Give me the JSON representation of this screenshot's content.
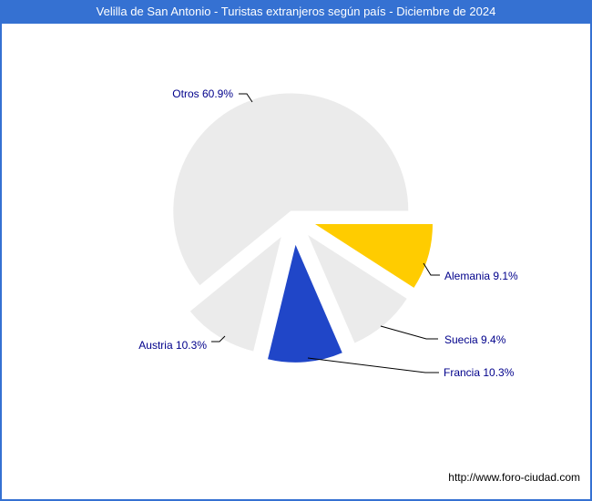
{
  "window": {
    "title": "Velilla de San Antonio - Turistas extranjeros según país - Diciembre de 2024"
  },
  "footer": {
    "url": "http://www.foro-ciudad.com"
  },
  "colors": {
    "titlebar_bg": "#3571D2",
    "titlebar_text": "#FFFFFF",
    "frame_border": "#3571D2",
    "label_text": "#00008B",
    "leader_line": "#000000",
    "background": "#FFFFFF"
  },
  "chart_data": {
    "type": "pie",
    "title": "Velilla de San Antonio - Turistas extranjeros según país - Diciembre de 2024",
    "unit": "%",
    "start_angle_deg": 0,
    "direction": "clockwise",
    "legend_position": "none",
    "exploded": true,
    "slices": [
      {
        "label": "Alemania",
        "value": 9.1,
        "color": "#FFCC00",
        "label_text": "Alemania 9.1%"
      },
      {
        "label": "Suecia",
        "value": 9.4,
        "color": "#EBEBEB",
        "label_text": "Suecia 9.4%"
      },
      {
        "label": "Francia",
        "value": 10.3,
        "color": "#2046C8",
        "label_text": "Francia 10.3%"
      },
      {
        "label": "Austria",
        "value": 10.3,
        "color": "#EBEBEB",
        "label_text": "Austria 10.3%"
      },
      {
        "label": "Otros",
        "value": 60.9,
        "color": "#EBEBEB",
        "label_text": "Otros 60.9%"
      }
    ]
  }
}
